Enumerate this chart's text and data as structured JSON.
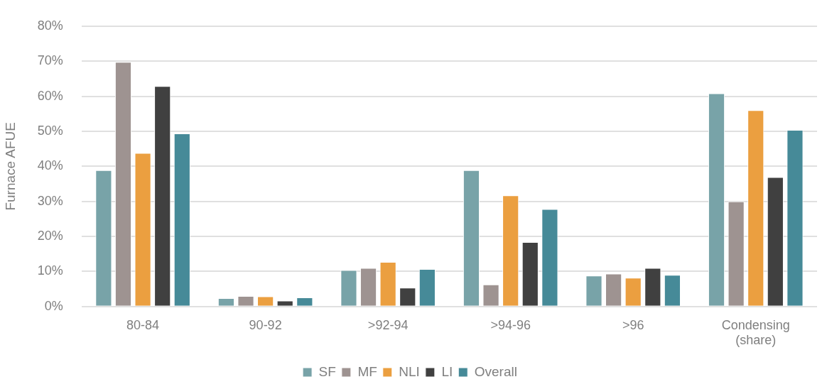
{
  "chart_data": {
    "type": "bar",
    "ylabel": "Furnace AFUE",
    "categories": [
      "80-84",
      "90-92",
      ">92-94",
      ">94-96",
      ">96",
      "Condensing (share)"
    ],
    "series": [
      {
        "name": "SF",
        "color": "#78a3a8",
        "values": [
          38.9,
          2.4,
          10.4,
          38.9,
          8.8,
          60.8
        ]
      },
      {
        "name": "MF",
        "color": "#9e9391",
        "values": [
          69.8,
          3.0,
          11.0,
          6.3,
          9.4,
          30.0
        ]
      },
      {
        "name": "NLI",
        "color": "#eb9f40",
        "values": [
          43.8,
          2.9,
          12.7,
          31.7,
          8.2,
          56.0
        ]
      },
      {
        "name": "LI",
        "color": "#404040",
        "values": [
          62.9,
          1.7,
          5.4,
          18.4,
          11.0,
          36.9
        ]
      },
      {
        "name": "Overall",
        "color": "#468a98",
        "values": [
          49.4,
          2.6,
          10.7,
          27.8,
          9.0,
          50.4
        ]
      }
    ],
    "ylim": [
      0,
      80
    ],
    "yticks": [
      {
        "value": 0,
        "label": "0%"
      },
      {
        "value": 10,
        "label": "10%"
      },
      {
        "value": 20,
        "label": "20%"
      },
      {
        "value": 30,
        "label": "30%"
      },
      {
        "value": 40,
        "label": "40%"
      },
      {
        "value": 50,
        "label": "50%"
      },
      {
        "value": 60,
        "label": "60%"
      },
      {
        "value": 70,
        "label": "70%"
      },
      {
        "value": 80,
        "label": "80%"
      }
    ],
    "grid": "y",
    "legend": "bottom"
  }
}
